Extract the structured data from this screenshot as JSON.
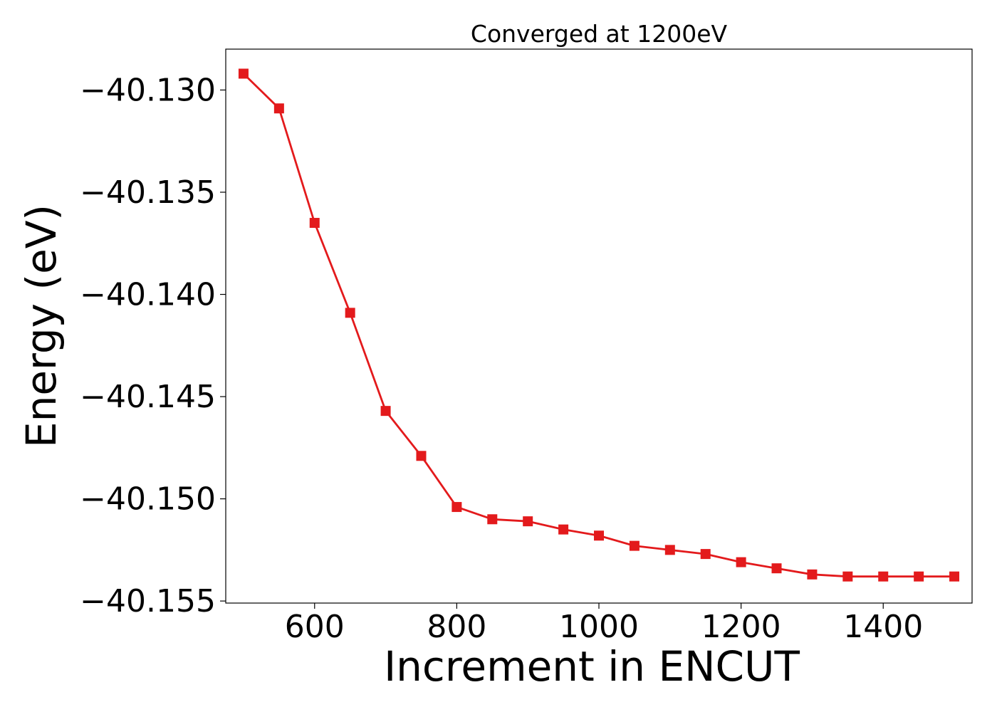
{
  "chart_data": {
    "type": "line",
    "title": "Converged at 1200eV",
    "xlabel": "Increment in ENCUT",
    "ylabel": "Energy (eV)",
    "xlim": [
      475,
      1525
    ],
    "ylim": [
      -40.1551,
      -40.128
    ],
    "x_ticks": [
      600,
      800,
      1000,
      1200,
      1400
    ],
    "x_tick_labels": [
      "600",
      "800",
      "1000",
      "1200",
      "1400"
    ],
    "y_ticks": [
      -40.13,
      -40.135,
      -40.14,
      -40.145,
      -40.15,
      -40.155
    ],
    "y_tick_labels": [
      "−40.130",
      "−40.135",
      "−40.140",
      "−40.145",
      "−40.150",
      "−40.155"
    ],
    "grid": false,
    "legend": false,
    "series": [
      {
        "color": "#e31a1c",
        "marker": "square",
        "x": [
          500,
          550,
          600,
          650,
          700,
          750,
          800,
          850,
          900,
          950,
          1000,
          1050,
          1100,
          1150,
          1200,
          1250,
          1300,
          1350,
          1400,
          1450,
          1500
        ],
        "y": [
          -40.1292,
          -40.1309,
          -40.1365,
          -40.1409,
          -40.1457,
          -40.1479,
          -40.1504,
          -40.151,
          -40.1511,
          -40.1515,
          -40.1518,
          -40.1523,
          -40.1525,
          -40.1527,
          -40.1531,
          -40.1534,
          -40.1537,
          -40.1538,
          -40.1538,
          -40.1538,
          -40.1538
        ]
      }
    ]
  }
}
